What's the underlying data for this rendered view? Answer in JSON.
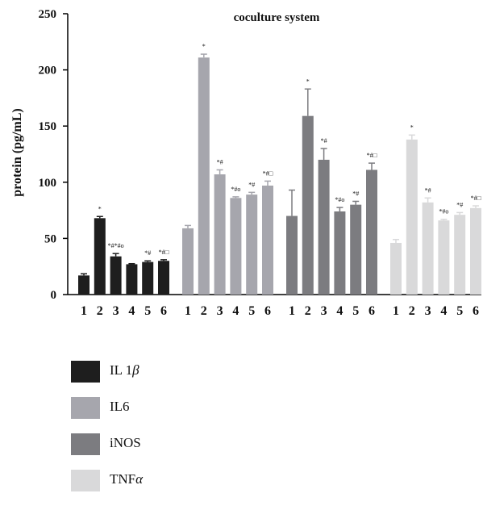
{
  "chart_data": {
    "type": "bar",
    "title": "coculture system",
    "ylabel": "protein (pg/mL)",
    "ylim": [
      0,
      250
    ],
    "yticks": [
      "0",
      "50",
      "100",
      "150",
      "200",
      "250"
    ],
    "categories": [
      "1",
      "2",
      "3",
      "4",
      "5",
      "6"
    ],
    "grid": false,
    "legend_position": "bottom-left",
    "series": [
      {
        "name": "IL 1β",
        "color": "#1e1e1e",
        "values": [
          17,
          68,
          34,
          27,
          29,
          30
        ],
        "errors": [
          1.5,
          1.5,
          2.5,
          0.5,
          1,
          1
        ],
        "annotations": [
          "",
          "*",
          "*#*#o",
          "",
          "*#",
          "*#□"
        ]
      },
      {
        "name": "IL6",
        "color": "#a6a6ad",
        "values": [
          59,
          211,
          107,
          86,
          89,
          97
        ],
        "errors": [
          2.5,
          3,
          4,
          1,
          2,
          4
        ],
        "annotations": [
          "",
          "*",
          "*#",
          "*#o",
          "*#",
          "*#□"
        ]
      },
      {
        "name": "iNOS",
        "color": "#7c7c80",
        "values": [
          70,
          159,
          120,
          74,
          80,
          111
        ],
        "errors": [
          23,
          24,
          10,
          3.5,
          3,
          6
        ],
        "annotations": [
          "",
          "*",
          "*#",
          "*#o",
          "*#",
          "*#□"
        ]
      },
      {
        "name": "TNFα",
        "color": "#d9d9da",
        "values": [
          46,
          138,
          82,
          66,
          71,
          77
        ],
        "errors": [
          3,
          4,
          4,
          1,
          2,
          2
        ],
        "annotations": [
          "",
          "*",
          "*#",
          "*#o",
          "*#",
          "*#□"
        ]
      }
    ]
  },
  "legend": [
    {
      "base": "IL 1",
      "greek": "β",
      "color": "#1e1e1e"
    },
    {
      "base": "IL6",
      "greek": "",
      "color": "#a6a6ad"
    },
    {
      "base": "iNOS",
      "greek": "",
      "color": "#7c7c80"
    },
    {
      "base": "TNF",
      "greek": "α",
      "color": "#d9d9da"
    }
  ]
}
